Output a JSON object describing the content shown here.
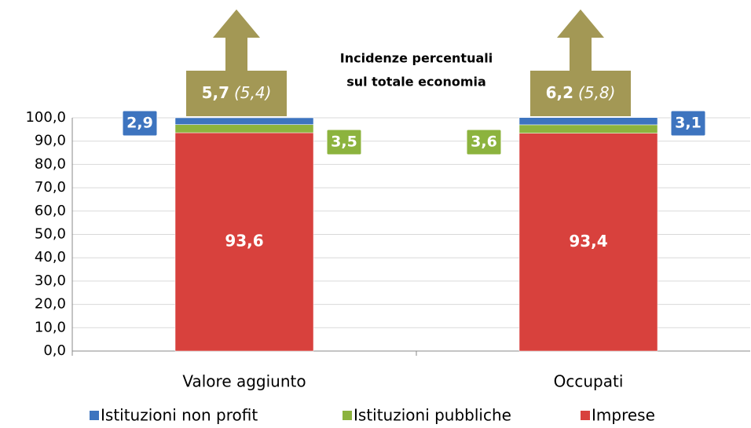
{
  "chart_data": {
    "type": "stacked_bar",
    "title_lines": [
      "Incidenze percentuali",
      "sul totale economia"
    ],
    "categories": [
      "Valore aggiunto",
      "Occupati"
    ],
    "series": [
      {
        "name": "Imprese",
        "color": "#d8413d",
        "values": [
          93.6,
          93.4
        ],
        "value_labels": [
          "93,6",
          "93,4"
        ]
      },
      {
        "name": "Istituzioni pubbliche",
        "color": "#8cb33e",
        "values": [
          3.5,
          3.6
        ],
        "value_labels": [
          "3,5",
          "3,6"
        ]
      },
      {
        "name": "Istituzioni non profit",
        "color": "#3d74bf",
        "values": [
          2.9,
          3.1
        ],
        "value_labels": [
          "2,9",
          "3,1"
        ]
      }
    ],
    "annotations": [
      {
        "text": "5,7",
        "detail": "(5,4)"
      },
      {
        "text": "6,2",
        "detail": "(5,8)"
      }
    ],
    "ylim": [
      0,
      100
    ],
    "yticks": [
      {
        "value": 0,
        "label": "0,0"
      },
      {
        "value": 10,
        "label": "10,0"
      },
      {
        "value": 20,
        "label": "20,0"
      },
      {
        "value": 30,
        "label": "30,0"
      },
      {
        "value": 40,
        "label": "40,0"
      },
      {
        "value": 50,
        "label": "50,0"
      },
      {
        "value": 60,
        "label": "60,0"
      },
      {
        "value": 70,
        "label": "70,0"
      },
      {
        "value": 80,
        "label": "80,0"
      },
      {
        "value": 90,
        "label": "90,0"
      },
      {
        "value": 100,
        "label": "100,0"
      }
    ],
    "grid": true,
    "legend": "bottom"
  }
}
